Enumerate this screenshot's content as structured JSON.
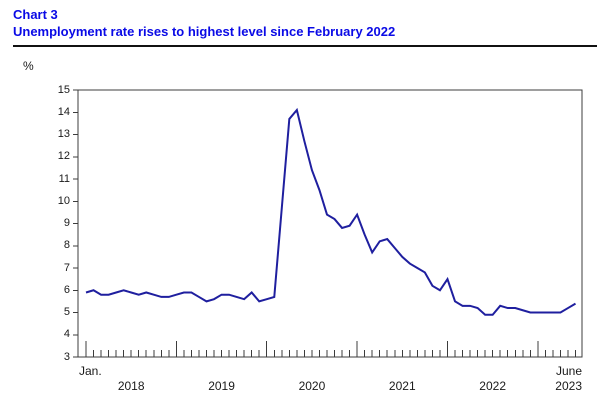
{
  "header": {
    "chart_label": "Chart 3",
    "title": "Unemployment rate rises to highest level since February 2022",
    "title_color": "#0a0ae6"
  },
  "chart_data": {
    "type": "line",
    "title": "Unemployment rate rises to highest level since February 2022",
    "unit_label": "%",
    "ylabel": "%",
    "ylim": [
      3,
      15
    ],
    "yticks": [
      3,
      4,
      5,
      6,
      7,
      8,
      9,
      10,
      11,
      12,
      13,
      14,
      15
    ],
    "grid": false,
    "legend_position": "none",
    "line_color": "#1f1f9f",
    "axis_color": "#3c3c3c",
    "x_axis": {
      "start_month_label": "Jan.",
      "year_labels": [
        "2018",
        "2019",
        "2020",
        "2021",
        "2022"
      ],
      "end_month_label": "June",
      "end_year_label": "2023",
      "range": "January 2018 to June 2023",
      "frequency": "monthly",
      "n_points": 66
    },
    "series": [
      {
        "name": "Unemployment rate",
        "unit": "%",
        "values": [
          5.9,
          6.0,
          5.8,
          5.8,
          5.9,
          6.0,
          5.9,
          5.8,
          5.9,
          5.8,
          5.7,
          5.7,
          5.8,
          5.9,
          5.9,
          5.7,
          5.5,
          5.6,
          5.8,
          5.8,
          5.7,
          5.6,
          5.9,
          5.5,
          5.6,
          5.7,
          9.7,
          13.7,
          14.1,
          12.7,
          11.4,
          10.5,
          9.4,
          9.2,
          8.8,
          8.9,
          9.4,
          8.5,
          7.7,
          8.2,
          8.3,
          7.9,
          7.5,
          7.2,
          7.0,
          6.8,
          6.2,
          6.0,
          6.5,
          5.5,
          5.3,
          5.3,
          5.2,
          4.9,
          4.9,
          5.3,
          5.2,
          5.2,
          5.1,
          5.0,
          5.0,
          5.0,
          5.0,
          5.0,
          5.2,
          5.4
        ]
      }
    ]
  }
}
